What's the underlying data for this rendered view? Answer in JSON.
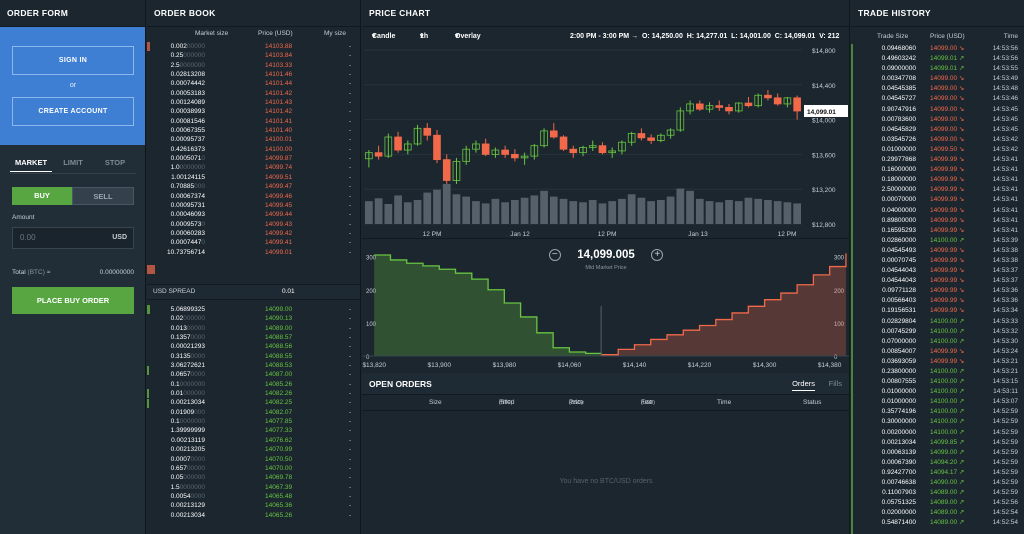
{
  "order_form": {
    "title": "ORDER FORM",
    "sign_in": "SIGN IN",
    "or": "or",
    "create_account": "CREATE ACCOUNT",
    "tabs": [
      "MARKET",
      "LIMIT",
      "STOP"
    ],
    "active_tab": "MARKET",
    "buy": "BUY",
    "sell": "SELL",
    "amount_label": "Amount",
    "amount_placeholder": "0.00",
    "amount_unit": "USD",
    "total_label": "Total",
    "total_unit": "(BTC)",
    "total_approx": "≈",
    "total_value": "0.00000000",
    "place_order": "PLACE BUY ORDER"
  },
  "order_book": {
    "title": "ORDER BOOK",
    "col_market_size": "Market size",
    "col_price": "Price (USD)",
    "col_my_size": "My size",
    "spread_label": "USD SPREAD",
    "spread_value": "0.01",
    "asks": [
      {
        "size": "0.002",
        "pad": "00000",
        "price": "14103.88",
        "my": "-"
      },
      {
        "size": "0.25",
        "pad": "000000",
        "price": "14103.84",
        "my": "-"
      },
      {
        "size": "2.5",
        "pad": "0000000",
        "price": "14103.33",
        "my": "-"
      },
      {
        "size": "0.02813208",
        "pad": "",
        "price": "14101.46",
        "my": "-"
      },
      {
        "size": "0.00074442",
        "pad": "",
        "price": "14101.44",
        "my": "-"
      },
      {
        "size": "0.00053183",
        "pad": "",
        "price": "14101.42",
        "my": "-"
      },
      {
        "size": "0.00124089",
        "pad": "",
        "price": "14101.43",
        "my": "-"
      },
      {
        "size": "0.00038993",
        "pad": "",
        "price": "14101.42",
        "my": "-"
      },
      {
        "size": "0.00081546",
        "pad": "",
        "price": "14101.41",
        "my": "-"
      },
      {
        "size": "0.00067355",
        "pad": "",
        "price": "14101.40",
        "my": "-"
      },
      {
        "size": "0.00095737",
        "pad": "",
        "price": "14100.01",
        "my": "-"
      },
      {
        "size": "0.42616373",
        "pad": "",
        "price": "14100.00",
        "my": "-"
      },
      {
        "size": "0.0005071",
        "pad": "0",
        "price": "14099.87",
        "my": "-"
      },
      {
        "size": "1.0",
        "pad": "0000000",
        "price": "14099.74",
        "my": "-"
      },
      {
        "size": "1.00124115",
        "pad": "",
        "price": "14099.51",
        "my": "-"
      },
      {
        "size": "0.70885",
        "pad": "000",
        "price": "14099.47",
        "my": "-"
      },
      {
        "size": "0.00067374",
        "pad": "",
        "price": "14099.46",
        "my": "-"
      },
      {
        "size": "0.00095731",
        "pad": "",
        "price": "14099.45",
        "my": "-"
      },
      {
        "size": "0.00046093",
        "pad": "",
        "price": "14099.44",
        "my": "-"
      },
      {
        "size": "0.0009573",
        "pad": "0",
        "price": "14099.43",
        "my": "-"
      },
      {
        "size": "0.00060283",
        "pad": "",
        "price": "14099.42",
        "my": "-"
      },
      {
        "size": "0.0007447",
        "pad": "0",
        "price": "14099.41",
        "my": "-"
      },
      {
        "size": "10.73756714",
        "pad": "",
        "price": "14099.01",
        "my": "-"
      }
    ],
    "bids": [
      {
        "size": "5.06899325",
        "pad": "",
        "price": "14099.00",
        "my": "-"
      },
      {
        "size": "0.02",
        "pad": "000000",
        "price": "14090.13",
        "my": "-"
      },
      {
        "size": "0.013",
        "pad": "00000",
        "price": "14089.00",
        "my": "-"
      },
      {
        "size": "0.1357",
        "pad": "0000",
        "price": "14088.57",
        "my": "-"
      },
      {
        "size": "0.00021293",
        "pad": "",
        "price": "14088.56",
        "my": "-"
      },
      {
        "size": "0.3135",
        "pad": "0000",
        "price": "14088.55",
        "my": "-"
      },
      {
        "size": "3.06272621",
        "pad": "",
        "price": "14088.53",
        "my": "-"
      },
      {
        "size": "0.0657",
        "pad": "0000",
        "price": "14087.00",
        "my": "-"
      },
      {
        "size": "0.1",
        "pad": "0000000",
        "price": "14085.26",
        "my": "-"
      },
      {
        "size": "0.01",
        "pad": "000000",
        "price": "14082.26",
        "my": "-"
      },
      {
        "size": "0.00213034",
        "pad": "",
        "price": "14082.25",
        "my": "-"
      },
      {
        "size": "0.01909",
        "pad": "000",
        "price": "14082.07",
        "my": "-"
      },
      {
        "size": "0.1",
        "pad": "0000000",
        "price": "14077.85",
        "my": "-"
      },
      {
        "size": "1.39999999",
        "pad": "",
        "price": "14077.33",
        "my": "-"
      },
      {
        "size": "0.00213119",
        "pad": "",
        "price": "14076.62",
        "my": "-"
      },
      {
        "size": "0.00213205",
        "pad": "",
        "price": "14070.99",
        "my": "-"
      },
      {
        "size": "0.0007",
        "pad": "0000",
        "price": "14070.50",
        "my": "-"
      },
      {
        "size": "0.657",
        "pad": "00000",
        "price": "14070.00",
        "my": "-"
      },
      {
        "size": "0.05",
        "pad": "000000",
        "price": "14069.78",
        "my": "-"
      },
      {
        "size": "1.5",
        "pad": "0000000",
        "price": "14067.39",
        "my": "-"
      },
      {
        "size": "0.0054",
        "pad": "0000",
        "price": "14065.48",
        "my": "-"
      },
      {
        "size": "0.00213129",
        "pad": "",
        "price": "14065.36",
        "my": "-"
      },
      {
        "size": "0.00213034",
        "pad": "",
        "price": "14065.26",
        "my": "-"
      }
    ]
  },
  "price_chart": {
    "title": "PRICE CHART",
    "type_select": "Candle",
    "interval_select": "1h",
    "overlay_select": "Overlay",
    "range": "2:00 PM - 3:00 PM →",
    "o_label": "O:",
    "o_value": "14,250.00",
    "h_label": "H:",
    "h_value": "14,277.01",
    "l_label": "L:",
    "l_value": "14,001.00",
    "c_label": "C:",
    "c_value": "14,099.01",
    "v_label": "V:",
    "v_value": "212",
    "last_price_tag": "14,099.01",
    "mid_price": "14,099.005",
    "mid_label": "Mid Market Price",
    "colors": {
      "up": "#69c541",
      "down": "#f2694a",
      "vol": "#56606a"
    }
  },
  "chart_data": [
    {
      "type": "candlestick",
      "title": "",
      "x_ticks": [
        "12 PM",
        "Jan 12",
        "12 PM",
        "Jan 13",
        "12 PM"
      ],
      "y_ticks": [
        "$12,800",
        "$13,200",
        "$13,600",
        "$14,000",
        "$14,400",
        "$14,800"
      ],
      "ylim": [
        12800,
        14800
      ],
      "candles": [
        [
          13550,
          13650,
          13450,
          13620
        ],
        [
          13620,
          13700,
          13540,
          13580
        ],
        [
          13580,
          13840,
          13560,
          13800
        ],
        [
          13800,
          13860,
          13620,
          13650
        ],
        [
          13650,
          13760,
          13600,
          13720
        ],
        [
          13720,
          13940,
          13700,
          13900
        ],
        [
          13900,
          13960,
          13760,
          13820
        ],
        [
          13820,
          13880,
          13500,
          13540
        ],
        [
          13540,
          13600,
          13260,
          13300
        ],
        [
          13300,
          13560,
          13260,
          13520
        ],
        [
          13520,
          13700,
          13480,
          13660
        ],
        [
          13660,
          13760,
          13620,
          13720
        ],
        [
          13720,
          13780,
          13580,
          13600
        ],
        [
          13600,
          13680,
          13560,
          13650
        ],
        [
          13650,
          13700,
          13560,
          13600
        ],
        [
          13600,
          13660,
          13520,
          13560
        ],
        [
          13560,
          13620,
          13480,
          13580
        ],
        [
          13580,
          13720,
          13540,
          13700
        ],
        [
          13700,
          13900,
          13680,
          13870
        ],
        [
          13870,
          13960,
          13780,
          13800
        ],
        [
          13800,
          13820,
          13640,
          13660
        ],
        [
          13660,
          13700,
          13560,
          13620
        ],
        [
          13620,
          13700,
          13580,
          13680
        ],
        [
          13680,
          13760,
          13640,
          13700
        ],
        [
          13700,
          13740,
          13600,
          13620
        ],
        [
          13620,
          13680,
          13560,
          13640
        ],
        [
          13640,
          13760,
          13600,
          13740
        ],
        [
          13740,
          13860,
          13700,
          13840
        ],
        [
          13840,
          13900,
          13760,
          13790
        ],
        [
          13790,
          13830,
          13720,
          13760
        ],
        [
          13760,
          13840,
          13740,
          13820
        ],
        [
          13820,
          13900,
          13780,
          13880
        ],
        [
          13880,
          14140,
          13860,
          14100
        ],
        [
          14100,
          14220,
          14060,
          14180
        ],
        [
          14180,
          14220,
          14100,
          14120
        ],
        [
          14120,
          14200,
          14080,
          14160
        ],
        [
          14160,
          14220,
          14100,
          14140
        ],
        [
          14140,
          14180,
          14060,
          14100
        ],
        [
          14100,
          14200,
          14080,
          14190
        ],
        [
          14190,
          14260,
          14140,
          14160
        ],
        [
          14160,
          14300,
          14140,
          14280
        ],
        [
          14280,
          14340,
          14220,
          14250
        ],
        [
          14250,
          14300,
          14160,
          14180
        ],
        [
          14180,
          14260,
          14140,
          14250
        ],
        [
          14250,
          14277,
          14001,
          14099
        ]
      ],
      "volumes": [
        40,
        45,
        35,
        50,
        38,
        42,
        55,
        60,
        70,
        52,
        48,
        40,
        36,
        44,
        38,
        42,
        46,
        50,
        58,
        48,
        44,
        40,
        38,
        42,
        36,
        40,
        44,
        52,
        46,
        40,
        42,
        48,
        62,
        58,
        44,
        40,
        38,
        42,
        40,
        46,
        44,
        42,
        40,
        38,
        36
      ]
    },
    {
      "type": "area",
      "title": "",
      "x_ticks": [
        "$13,820",
        "$13,900",
        "$13,980",
        "$14,060",
        "$14,140",
        "$14,220",
        "$14,300",
        "$14,380"
      ],
      "y_ticks": [
        "0",
        "100",
        "200",
        "300"
      ],
      "ylim": [
        0,
        320
      ],
      "series": [
        {
          "name": "Bids",
          "color": "#69c541",
          "x": [
            13820,
            13840,
            13860,
            13880,
            13900,
            13920,
            13940,
            13960,
            13980,
            14000,
            14020,
            14040,
            14060,
            14080,
            14099
          ],
          "values": [
            305,
            290,
            280,
            272,
            262,
            250,
            232,
            200,
            160,
            118,
            70,
            25,
            12,
            8,
            4
          ]
        },
        {
          "name": "Asks",
          "color": "#f2694a",
          "x": [
            14099,
            14120,
            14140,
            14160,
            14180,
            14200,
            14220,
            14240,
            14260,
            14280,
            14300,
            14320,
            14340,
            14360,
            14380,
            14400
          ],
          "values": [
            4,
            20,
            34,
            50,
            64,
            78,
            92,
            110,
            130,
            150,
            170,
            190,
            215,
            245,
            270,
            310
          ]
        }
      ]
    }
  ],
  "open_orders": {
    "title": "OPEN ORDERS",
    "tab_orders": "Orders",
    "tab_fills": "Fills",
    "cols": [
      "Size",
      "Filled",
      "(BTC)",
      "Price",
      "(USD)",
      "Fee",
      "(USD)",
      "Time",
      "Status"
    ],
    "empty": "You have no BTC/USD orders"
  },
  "trade_history": {
    "title": "TRADE HISTORY",
    "col_size": "Trade Size",
    "col_price": "Price (USD)",
    "col_time": "Time",
    "rows": [
      {
        "size": "0.09468060",
        "price": "14099.00",
        "dir": "down",
        "time": "14:53:56"
      },
      {
        "size": "0.49603242",
        "price": "14099.01",
        "dir": "up",
        "time": "14:53:56"
      },
      {
        "size": "0.09000000",
        "price": "14099.01",
        "dir": "up",
        "time": "14:53:55"
      },
      {
        "size": "0.00347708",
        "price": "14099.00",
        "dir": "down",
        "time": "14:53:49"
      },
      {
        "size": "0.04545385",
        "price": "14099.00",
        "dir": "down",
        "time": "14:53:48"
      },
      {
        "size": "0.04545727",
        "price": "14099.00",
        "dir": "down",
        "time": "14:53:46"
      },
      {
        "size": "0.90747916",
        "price": "14099.00",
        "dir": "down",
        "time": "14:53:45"
      },
      {
        "size": "0.00783600",
        "price": "14099.00",
        "dir": "down",
        "time": "14:53:45"
      },
      {
        "size": "0.04545829",
        "price": "14099.00",
        "dir": "down",
        "time": "14:53:45"
      },
      {
        "size": "0.03545726",
        "price": "14099.00",
        "dir": "down",
        "time": "14:53:42"
      },
      {
        "size": "0.01000000",
        "price": "14099.50",
        "dir": "down",
        "time": "14:53:42"
      },
      {
        "size": "0.29977868",
        "price": "14099.99",
        "dir": "down",
        "time": "14:53:41"
      },
      {
        "size": "0.16000000",
        "price": "14099.99",
        "dir": "down",
        "time": "14:53:41"
      },
      {
        "size": "0.18000000",
        "price": "14099.99",
        "dir": "down",
        "time": "14:53:41"
      },
      {
        "size": "2.50000000",
        "price": "14099.99",
        "dir": "down",
        "time": "14:53:41"
      },
      {
        "size": "0.00070000",
        "price": "14099.99",
        "dir": "down",
        "time": "14:53:41"
      },
      {
        "size": "0.04000000",
        "price": "14099.99",
        "dir": "down",
        "time": "14:53:41"
      },
      {
        "size": "0.89800000",
        "price": "14099.99",
        "dir": "down",
        "time": "14:53:41"
      },
      {
        "size": "0.16595293",
        "price": "14099.99",
        "dir": "down",
        "time": "14:53:41"
      },
      {
        "size": "0.02860000",
        "price": "14100.00",
        "dir": "up",
        "time": "14:53:39"
      },
      {
        "size": "0.04545493",
        "price": "14099.99",
        "dir": "down",
        "time": "14:53:38"
      },
      {
        "size": "0.00070745",
        "price": "14099.99",
        "dir": "down",
        "time": "14:53:38"
      },
      {
        "size": "0.04544043",
        "price": "14099.99",
        "dir": "down",
        "time": "14:53:37"
      },
      {
        "size": "0.04544043",
        "price": "14099.99",
        "dir": "down",
        "time": "14:53:37"
      },
      {
        "size": "0.09771128",
        "price": "14099.99",
        "dir": "down",
        "time": "14:53:36"
      },
      {
        "size": "0.00566403",
        "price": "14099.99",
        "dir": "down",
        "time": "14:53:36"
      },
      {
        "size": "0.19156531",
        "price": "14099.99",
        "dir": "down",
        "time": "14:53:34"
      },
      {
        "size": "0.02829804",
        "price": "14100.00",
        "dir": "up",
        "time": "14:53:33"
      },
      {
        "size": "0.00745299",
        "price": "14100.00",
        "dir": "up",
        "time": "14:53:32"
      },
      {
        "size": "0.07000000",
        "price": "14100.00",
        "dir": "up",
        "time": "14:53:30"
      },
      {
        "size": "0.00854007",
        "price": "14099.99",
        "dir": "down",
        "time": "14:53:24"
      },
      {
        "size": "0.03693059",
        "price": "14099.99",
        "dir": "down",
        "time": "14:53:21"
      },
      {
        "size": "0.23800000",
        "price": "14100.00",
        "dir": "up",
        "time": "14:53:21"
      },
      {
        "size": "0.00807555",
        "price": "14100.00",
        "dir": "up",
        "time": "14:53:15"
      },
      {
        "size": "0.01000000",
        "price": "14100.00",
        "dir": "up",
        "time": "14:53:11"
      },
      {
        "size": "0.01000000",
        "price": "14100.00",
        "dir": "up",
        "time": "14:53:07"
      },
      {
        "size": "0.35774196",
        "price": "14100.00",
        "dir": "up",
        "time": "14:52:59"
      },
      {
        "size": "0.30000000",
        "price": "14100.00",
        "dir": "up",
        "time": "14:52:59"
      },
      {
        "size": "0.00200000",
        "price": "14100.00",
        "dir": "up",
        "time": "14:52:59"
      },
      {
        "size": "0.00213034",
        "price": "14099.85",
        "dir": "up",
        "time": "14:52:59"
      },
      {
        "size": "0.00063139",
        "price": "14099.00",
        "dir": "up",
        "time": "14:52:59"
      },
      {
        "size": "0.00067390",
        "price": "14094.20",
        "dir": "up",
        "time": "14:52:59"
      },
      {
        "size": "0.92427700",
        "price": "14094.17",
        "dir": "up",
        "time": "14:52:59"
      },
      {
        "size": "0.00746638",
        "price": "14090.00",
        "dir": "up",
        "time": "14:52:59"
      },
      {
        "size": "0.11007903",
        "price": "14089.00",
        "dir": "up",
        "time": "14:52:59"
      },
      {
        "size": "0.05751325",
        "price": "14089.00",
        "dir": "up",
        "time": "14:52:56"
      },
      {
        "size": "0.02000000",
        "price": "14089.00",
        "dir": "up",
        "time": "14:52:54"
      },
      {
        "size": "0.54871400",
        "price": "14089.00",
        "dir": "up",
        "time": "14:52:54"
      }
    ]
  }
}
